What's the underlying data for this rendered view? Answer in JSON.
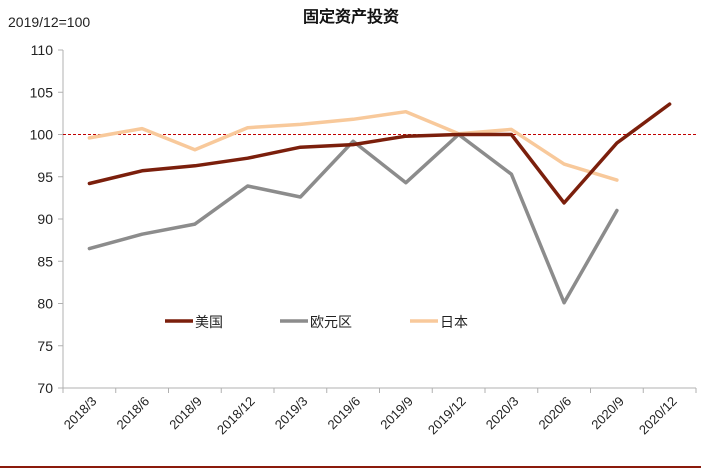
{
  "chart_data": {
    "type": "line",
    "title": "固定资产投资",
    "unit_label": "2019/12=100",
    "categories": [
      "2018/3",
      "2018/6",
      "2018/9",
      "2018/12",
      "2019/3",
      "2019/6",
      "2019/9",
      "2019/12",
      "2020/3",
      "2020/6",
      "2020/9",
      "2020/12"
    ],
    "ylim": [
      70,
      110
    ],
    "yticks": [
      70,
      75,
      80,
      85,
      90,
      95,
      100,
      105,
      110
    ],
    "reference_line": {
      "value": 100,
      "color": "#c00000",
      "style": "dashed"
    },
    "grid": false,
    "legend_placement": "bottom-center-inside",
    "series": [
      {
        "name": "美国",
        "color": "#7b1f0c",
        "values": [
          94.2,
          95.7,
          96.3,
          97.2,
          98.5,
          98.8,
          99.8,
          100,
          100,
          91.9,
          99.0,
          103.6
        ]
      },
      {
        "name": "欧元区",
        "color": "#8c8c8c",
        "values": [
          86.5,
          88.2,
          89.4,
          93.9,
          92.6,
          99.2,
          94.3,
          100,
          95.3,
          80.1,
          91.0,
          null
        ]
      },
      {
        "name": "日本",
        "color": "#f8c99b",
        "values": [
          99.6,
          100.7,
          98.2,
          100.8,
          101.2,
          101.8,
          102.7,
          100.1,
          100.6,
          96.5,
          94.6,
          null
        ]
      }
    ]
  }
}
